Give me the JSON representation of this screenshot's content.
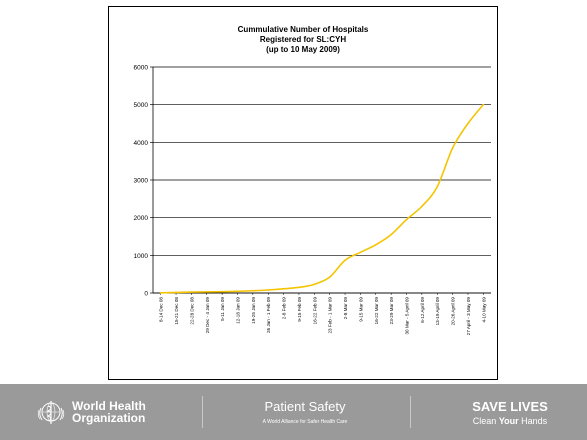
{
  "chart_data": {
    "type": "line",
    "title_lines": [
      "Cummulative Number of Hospitals",
      "Registered for SL:CYH",
      "(up to 10 May 2009)"
    ],
    "xlabel": "",
    "ylabel": "",
    "ylim": [
      0,
      6000
    ],
    "yticks": [
      "0",
      "1000",
      "2000",
      "3000",
      "4000",
      "5000",
      "6000"
    ],
    "grid": true,
    "line_color": "#f5c400",
    "categories": [
      "8-14 Dec 08",
      "15-21 Dec 08",
      "22-28 Dec 08",
      "29 Dec - 4 Jan 09",
      "5-11 Jan 09",
      "12-18 Jan 09",
      "19-25 Jan 09",
      "26 Jan - 1 Feb 09",
      "2-8 Feb 09",
      "9-15 Feb 09",
      "16-22 Feb 09",
      "23 Feb - 1 Mar 09",
      "2-8 Mar 09",
      "9-15 Mar 09",
      "16-22 Mar 09",
      "23-29 Mar 09",
      "30 Mar - 5 April 09",
      "6-12 April 09",
      "13-19 April 09",
      "20-26 April 09",
      "27 April - 3 May 09",
      "4-10 May 09"
    ],
    "values": [
      5,
      15,
      25,
      30,
      35,
      45,
      60,
      80,
      110,
      150,
      230,
      420,
      870,
      1080,
      1280,
      1550,
      1950,
      2300,
      2820,
      3850,
      4500,
      5000
    ]
  },
  "footer": {
    "who_line1": "World Health",
    "who_line2": "Organization",
    "patient_safety": "Patient Safety",
    "patient_safety_sub": "A World Alliance for Safer Health Care",
    "save_lives": "SAVE LIVES",
    "clean": "Clean ",
    "your": "Your",
    "hands": " Hands"
  },
  "icons": {
    "who_logo": "who-emblem-icon"
  },
  "colors": {
    "footer_bg": "#9a9a9a",
    "line": "#f5c400"
  }
}
